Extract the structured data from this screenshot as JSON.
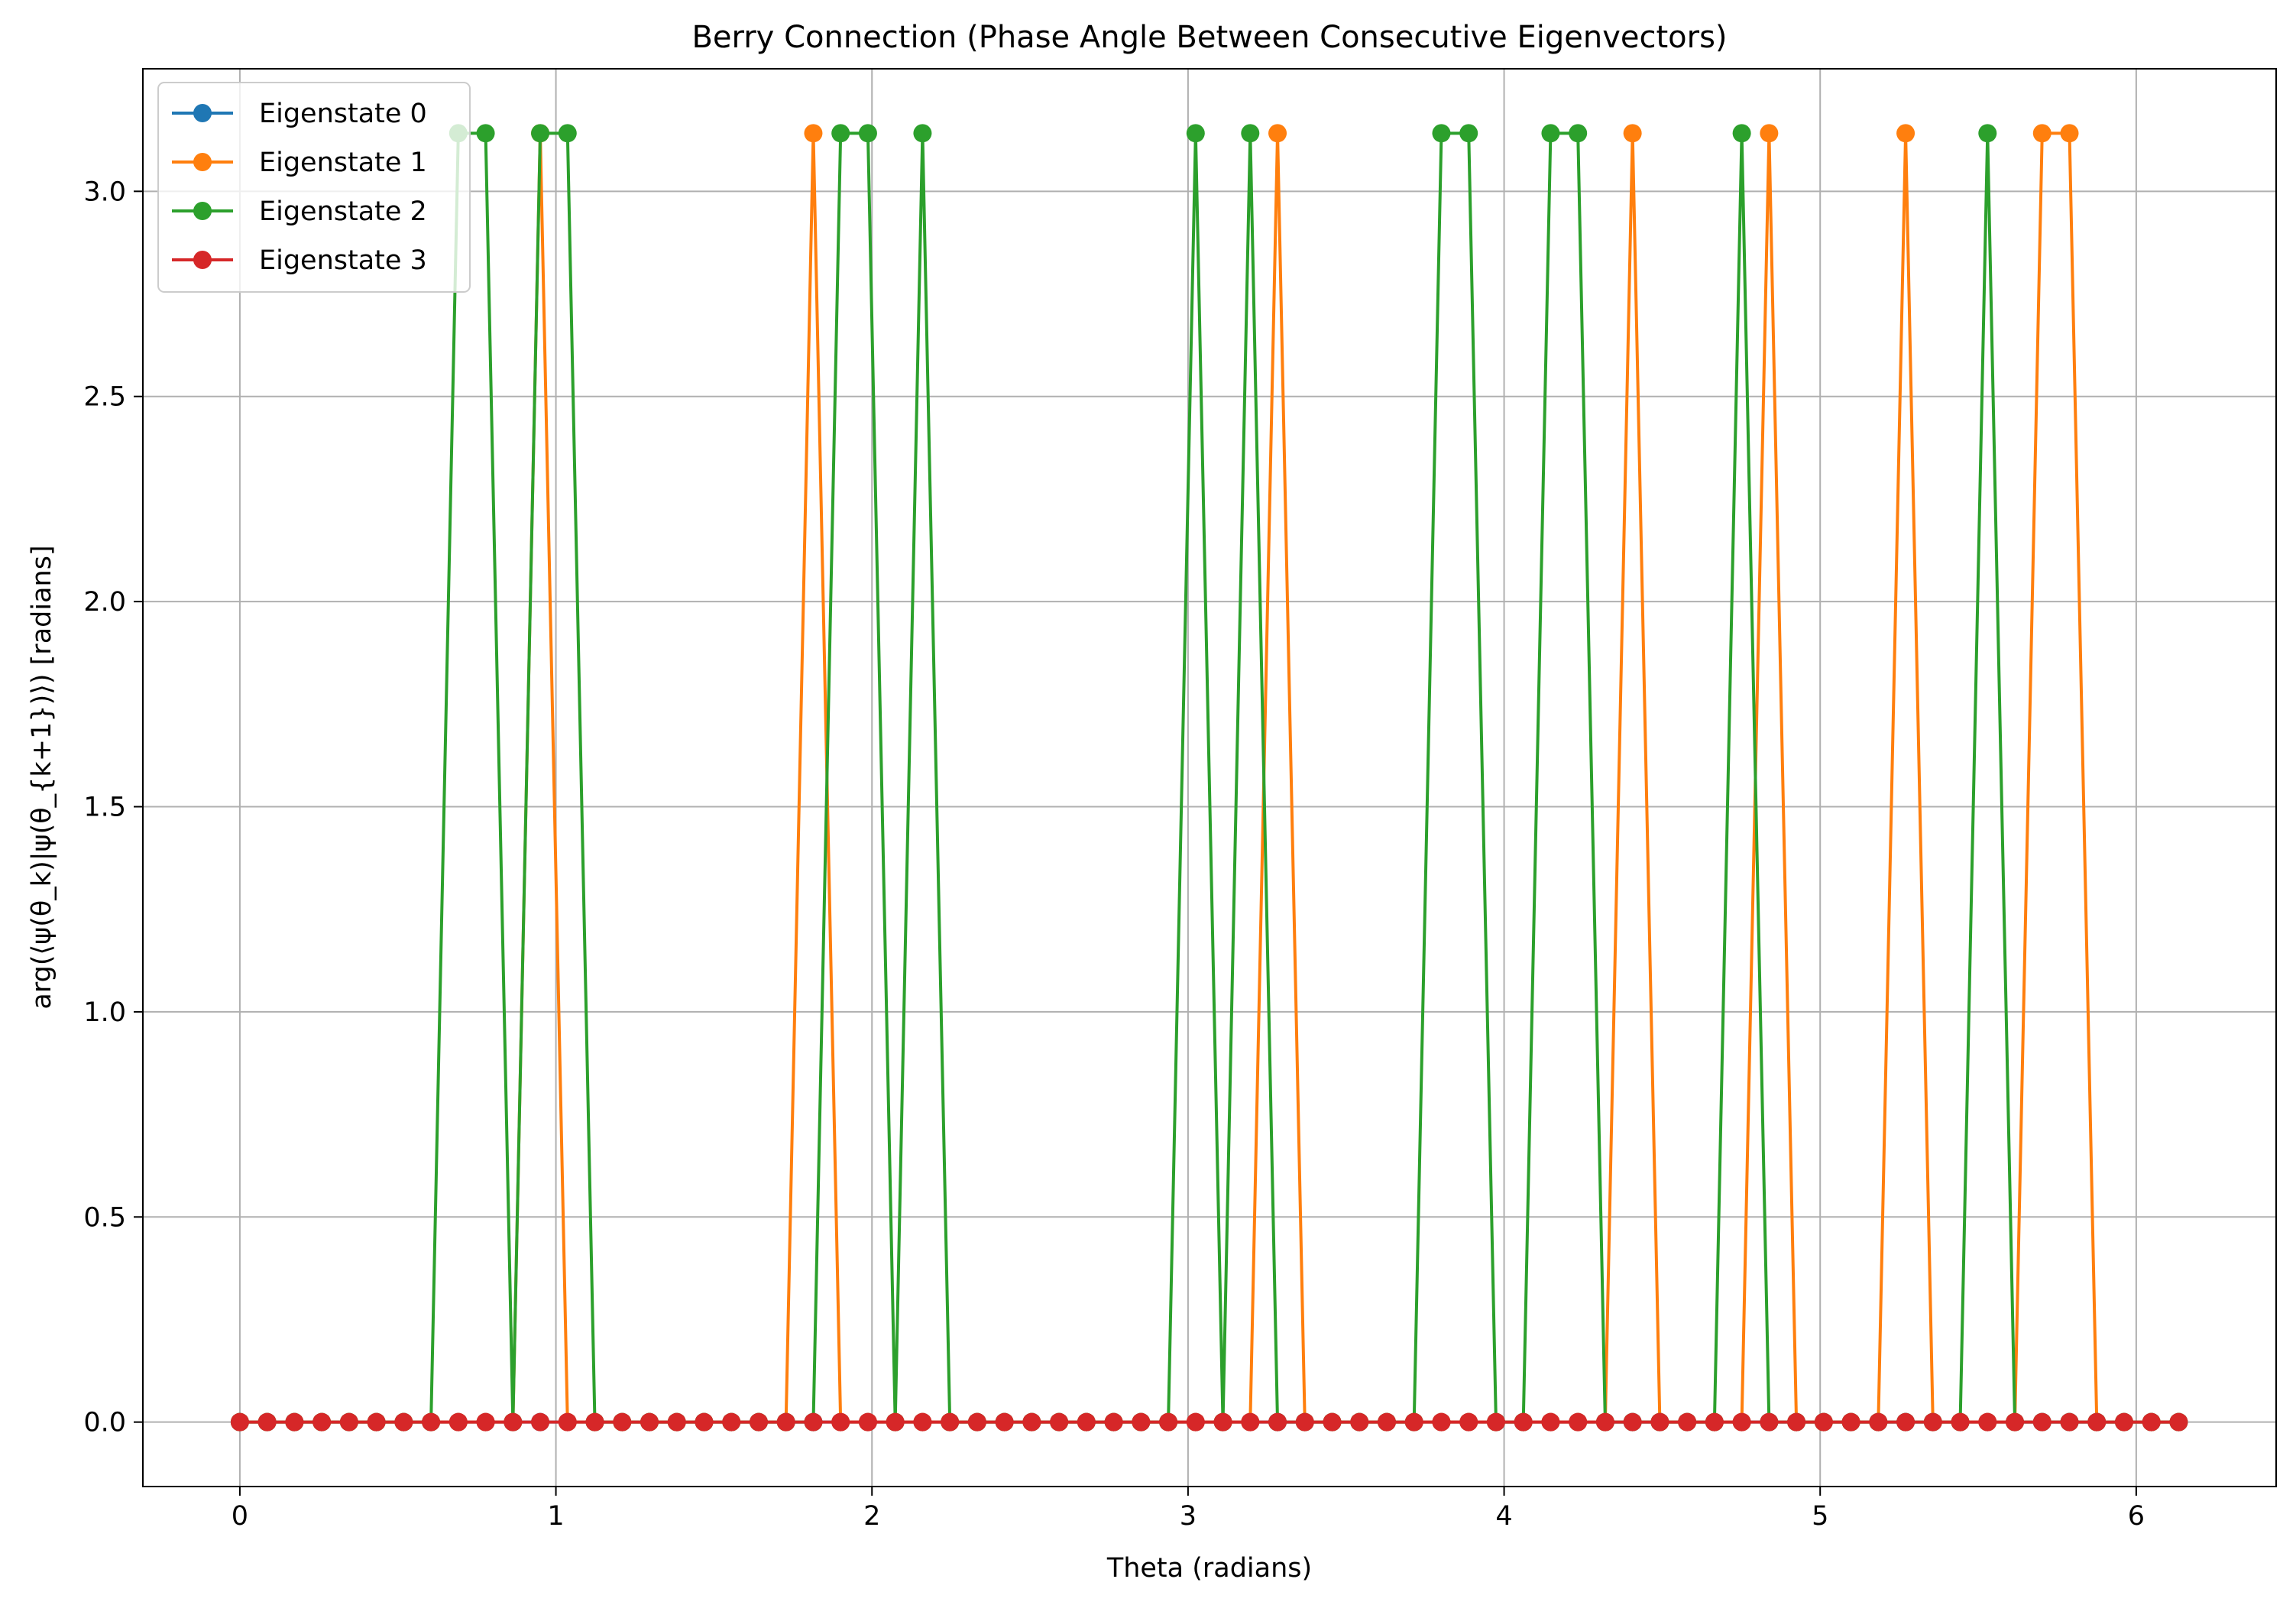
{
  "chart_data": {
    "type": "line",
    "title": "Berry Connection (Phase Angle Between Consecutive Eigenvectors)",
    "xlabel": "Theta (radians)",
    "ylabel": "arg(⟨ψ(θ_k)|ψ(θ_{k+1})⟩) [radians]",
    "xlim": [
      -0.3068,
      6.4427
    ],
    "ylim": [
      -0.1571,
      3.2987
    ],
    "x_ticks": [
      0,
      1,
      2,
      3,
      4,
      5,
      6
    ],
    "y_ticks": [
      0.0,
      0.5,
      1.0,
      1.5,
      2.0,
      2.5,
      3.0
    ],
    "x_tick_labels": [
      "0",
      "1",
      "2",
      "3",
      "4",
      "5",
      "6"
    ],
    "y_tick_labels": [
      "0.0",
      "0.5",
      "1.0",
      "1.5",
      "2.0",
      "2.5",
      "3.0"
    ],
    "grid": true,
    "legend_position": "upper-left",
    "marker": "circle",
    "x": [
      0.0,
      0.0864,
      0.1728,
      0.2592,
      0.3456,
      0.432,
      0.5184,
      0.6048,
      0.6912,
      0.7776,
      0.864,
      0.9504,
      1.0368,
      1.1232,
      1.2096,
      1.296,
      1.3824,
      1.4688,
      1.5552,
      1.6416,
      1.728,
      1.8144,
      1.9008,
      1.9872,
      2.0736,
      2.16,
      2.2464,
      2.3328,
      2.4192,
      2.5056,
      2.592,
      2.6784,
      2.7648,
      2.8512,
      2.9376,
      3.024,
      3.1104,
      3.1968,
      3.2832,
      3.3696,
      3.456,
      3.5424,
      3.6288,
      3.7152,
      3.8016,
      3.888,
      3.9744,
      4.0608,
      4.1472,
      4.2336,
      4.32,
      4.4064,
      4.4928,
      4.5792,
      4.6656,
      4.752,
      4.8384,
      4.9248,
      5.0112,
      5.0976,
      5.184,
      5.2704,
      5.3568,
      5.4432,
      5.5296,
      5.616,
      5.7024,
      5.7888,
      5.8752,
      5.9616,
      6.048,
      6.1344
    ],
    "series": [
      {
        "name": "Eigenstate 0",
        "color": "#1f77b4",
        "values": [
          0,
          0,
          0,
          0,
          0,
          0,
          0,
          0,
          0,
          0,
          0,
          0,
          0,
          0,
          0,
          0,
          0,
          0,
          0,
          0,
          0,
          0,
          0,
          0,
          0,
          0,
          0,
          0,
          0,
          0,
          0,
          0,
          0,
          0,
          0,
          0,
          0,
          0,
          0,
          0,
          0,
          0,
          0,
          0,
          0,
          0,
          0,
          0,
          0,
          0,
          0,
          0,
          0,
          0,
          0,
          0,
          0,
          0,
          0,
          0,
          0,
          0,
          0,
          0,
          0,
          0,
          0,
          0,
          0,
          0,
          0,
          0
        ]
      },
      {
        "name": "Eigenstate 1",
        "color": "#ff7f0e",
        "values": [
          0,
          0,
          0,
          0,
          0,
          0,
          0,
          0,
          0,
          0,
          0,
          3.1416,
          0,
          0,
          0,
          0,
          0,
          0,
          0,
          0,
          0,
          3.1416,
          0,
          0,
          0,
          0,
          0,
          0,
          0,
          0,
          0,
          0,
          0,
          0,
          0,
          0,
          0,
          0,
          3.1416,
          0,
          0,
          0,
          0,
          0,
          0,
          0,
          0,
          0,
          0,
          0,
          0,
          3.1416,
          0,
          0,
          0,
          0,
          3.1416,
          0,
          0,
          0,
          0,
          3.1416,
          0,
          0,
          0,
          0,
          3.1416,
          3.1416,
          0,
          0,
          0,
          0
        ]
      },
      {
        "name": "Eigenstate 2",
        "color": "#2ca02c",
        "values": [
          0,
          0,
          0,
          0,
          0,
          0,
          0,
          0,
          3.1416,
          3.1416,
          0,
          3.1416,
          3.1416,
          0,
          0,
          0,
          0,
          0,
          0,
          0,
          0,
          0,
          3.1416,
          3.1416,
          0,
          3.1416,
          0,
          0,
          0,
          0,
          0,
          0,
          0,
          0,
          0,
          3.1416,
          0,
          3.1416,
          0,
          0,
          0,
          0,
          0,
          0,
          3.1416,
          3.1416,
          0,
          0,
          3.1416,
          3.1416,
          0,
          0,
          0,
          0,
          0,
          3.1416,
          0,
          0,
          0,
          0,
          0,
          0,
          0,
          0,
          3.1416,
          0,
          0,
          0,
          0,
          0,
          0,
          0
        ]
      },
      {
        "name": "Eigenstate 3",
        "color": "#d62728",
        "values": [
          0,
          0,
          0,
          0,
          0,
          0,
          0,
          0,
          0,
          0,
          0,
          0,
          0,
          0,
          0,
          0,
          0,
          0,
          0,
          0,
          0,
          0,
          0,
          0,
          0,
          0,
          0,
          0,
          0,
          0,
          0,
          0,
          0,
          0,
          0,
          0,
          0,
          0,
          0,
          0,
          0,
          0,
          0,
          0,
          0,
          0,
          0,
          0,
          0,
          0,
          0,
          0,
          0,
          0,
          0,
          0,
          0,
          0,
          0,
          0,
          0,
          0,
          0,
          0,
          0,
          0,
          0,
          0,
          0,
          0,
          0,
          0
        ]
      }
    ]
  }
}
